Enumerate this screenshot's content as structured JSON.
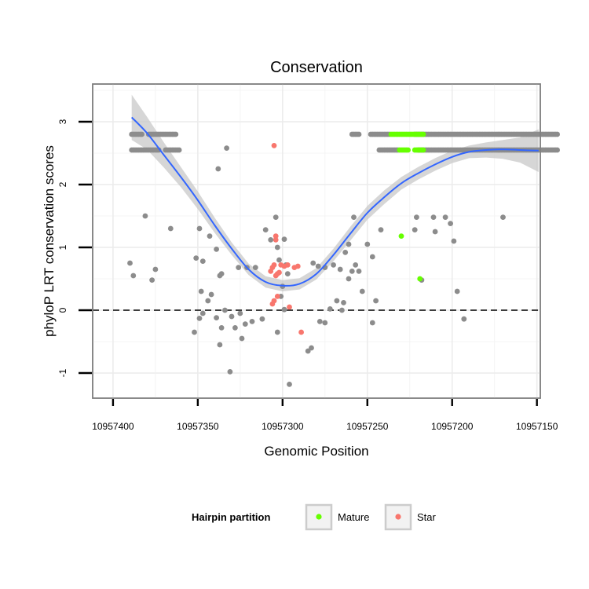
{
  "chart_data": {
    "type": "scatter",
    "title": "Conservation",
    "xlabel": "Genomic Position",
    "ylabel": "phyloP LRT conservation scores",
    "x_reversed": true,
    "xlim": [
      10957412,
      10957148
    ],
    "ylim": [
      -1.4,
      3.6
    ],
    "x_ticks": [
      10957400,
      10957350,
      10957300,
      10957250,
      10957200,
      10957150
    ],
    "x_tick_labels": [
      "10957400",
      "10957350",
      "10957300",
      "10957250",
      "10957200",
      "10957150"
    ],
    "y_ticks": [
      -1,
      0,
      1,
      2,
      3
    ],
    "y_tick_labels": [
      "-1",
      "0",
      "1",
      "2",
      "3"
    ],
    "reference_line": {
      "y": 0,
      "style": "dashed"
    },
    "legend": {
      "title": "Hairpin partition",
      "position": "bottom",
      "entries": [
        {
          "label": "Mature",
          "color": "#66ff00"
        },
        {
          "label": "Star",
          "color": "#f8766d"
        }
      ]
    },
    "colors": {
      "Other": "#8c8c8c",
      "Mature": "#66ff00",
      "Star": "#f8766d",
      "smooth": "#3366ff",
      "ribbon": "#c8c8c8"
    },
    "band_high": {
      "y": 2.8,
      "ranges": [
        [
          10957389,
          10957383
        ],
        [
          10957379,
          10957363
        ],
        [
          10957259,
          10957255
        ],
        [
          10957248,
          10957237
        ],
        [
          10957222,
          10957138
        ]
      ]
    },
    "band_low": {
      "y": 2.55,
      "ranges": [
        [
          10957389,
          10957373
        ],
        [
          10957369,
          10957361
        ],
        [
          10957243,
          10957232
        ],
        [
          10957220,
          10957138
        ]
      ]
    },
    "mature_high": {
      "y": 2.8,
      "ranges": [
        [
          10957236,
          10957217
        ]
      ]
    },
    "mature_low": {
      "y": 2.55,
      "ranges": [
        [
          10957231,
          10957226
        ],
        [
          10957222,
          10957217
        ]
      ]
    },
    "other_points": [
      [
        10957338,
        2.25
      ],
      [
        10957333,
        2.58
      ],
      [
        10957381,
        1.5
      ],
      [
        10957366,
        1.3
      ],
      [
        10957349,
        1.3
      ],
      [
        10957343,
        1.18
      ],
      [
        10957339,
        0.97
      ],
      [
        10957351,
        0.83
      ],
      [
        10957347,
        0.78
      ],
      [
        10957336,
        0.58
      ],
      [
        10957337,
        0.55
      ],
      [
        10957326,
        0.68
      ],
      [
        10957321,
        0.68
      ],
      [
        10957316,
        0.68
      ],
      [
        10957390,
        0.75
      ],
      [
        10957388,
        0.55
      ],
      [
        10957375,
        0.65
      ],
      [
        10957377,
        0.48
      ],
      [
        10957310,
        1.28
      ],
      [
        10957307,
        1.12
      ],
      [
        10957304,
        1.48
      ],
      [
        10957303,
        1.0
      ],
      [
        10957302,
        0.8
      ],
      [
        10957299,
        1.13
      ],
      [
        10957298,
        0.72
      ],
      [
        10957300,
        0.38
      ],
      [
        10957297,
        0.58
      ],
      [
        10957301,
        0.22
      ],
      [
        10957299,
        0.01
      ],
      [
        10957348,
        0.3
      ],
      [
        10957344,
        0.15
      ],
      [
        10957342,
        0.25
      ],
      [
        10957334,
        0.0
      ],
      [
        10957330,
        -0.1
      ],
      [
        10957325,
        -0.05
      ],
      [
        10957322,
        -0.22
      ],
      [
        10957318,
        -0.18
      ],
      [
        10957312,
        -0.14
      ],
      [
        10957347,
        -0.05
      ],
      [
        10957349,
        -0.13
      ],
      [
        10957352,
        -0.35
      ],
      [
        10957339,
        -0.12
      ],
      [
        10957336,
        -0.28
      ],
      [
        10957328,
        -0.28
      ],
      [
        10957324,
        -0.45
      ],
      [
        10957337,
        -0.55
      ],
      [
        10957331,
        -0.98
      ],
      [
        10957303,
        -0.35
      ],
      [
        10957296,
        -1.18
      ],
      [
        10957282,
        0.75
      ],
      [
        10957279,
        0.7
      ],
      [
        10957275,
        0.68
      ],
      [
        10957270,
        0.72
      ],
      [
        10957266,
        0.65
      ],
      [
        10957263,
        0.92
      ],
      [
        10957258,
        1.48
      ],
      [
        10957261,
        1.05
      ],
      [
        10957257,
        0.72
      ],
      [
        10957255,
        0.62
      ],
      [
        10957253,
        0.3
      ],
      [
        10957250,
        1.05
      ],
      [
        10957247,
        0.85
      ],
      [
        10957242,
        1.28
      ],
      [
        10957245,
        0.15
      ],
      [
        10957247,
        -0.2
      ],
      [
        10957259,
        0.62
      ],
      [
        10957261,
        0.5
      ],
      [
        10957264,
        0.12
      ],
      [
        10957265,
        0.0
      ],
      [
        10957268,
        0.15
      ],
      [
        10957272,
        0.02
      ],
      [
        10957275,
        -0.2
      ],
      [
        10957278,
        -0.18
      ],
      [
        10957283,
        -0.6
      ],
      [
        10957285,
        -0.65
      ],
      [
        10957221,
        1.48
      ],
      [
        10957222,
        1.28
      ],
      [
        10957218,
        0.48
      ],
      [
        10957211,
        1.48
      ],
      [
        10957210,
        1.25
      ],
      [
        10957204,
        1.48
      ],
      [
        10957201,
        1.38
      ],
      [
        10957199,
        1.1
      ],
      [
        10957197,
        0.3
      ],
      [
        10957193,
        -0.14
      ],
      [
        10957170,
        1.48
      ]
    ],
    "mature_points": [
      [
        10957230,
        1.18
      ],
      [
        10957219,
        0.5
      ]
    ],
    "star_points": [
      [
        10957305,
        2.62
      ],
      [
        10957304,
        1.12
      ],
      [
        10957304,
        1.18
      ],
      [
        10957305,
        0.72
      ],
      [
        10957306,
        0.68
      ],
      [
        10957307,
        0.62
      ],
      [
        10957304,
        0.55
      ],
      [
        10957303,
        0.58
      ],
      [
        10957302,
        0.6
      ],
      [
        10957301,
        0.72
      ],
      [
        10957299,
        0.7
      ],
      [
        10957303,
        0.22
      ],
      [
        10957305,
        0.15
      ],
      [
        10957306,
        0.1
      ],
      [
        10957296,
        0.05
      ],
      [
        10957293,
        0.68
      ],
      [
        10957297,
        0.72
      ],
      [
        10957291,
        0.7
      ],
      [
        10957289,
        -0.35
      ]
    ],
    "smooth_curve": [
      [
        10957389,
        3.07
      ],
      [
        10957380,
        2.82
      ],
      [
        10957370,
        2.47
      ],
      [
        10957360,
        2.12
      ],
      [
        10957350,
        1.75
      ],
      [
        10957340,
        1.35
      ],
      [
        10957330,
        0.98
      ],
      [
        10957320,
        0.65
      ],
      [
        10957310,
        0.45
      ],
      [
        10957300,
        0.39
      ],
      [
        10957290,
        0.42
      ],
      [
        10957280,
        0.58
      ],
      [
        10957270,
        0.88
      ],
      [
        10957260,
        1.22
      ],
      [
        10957250,
        1.55
      ],
      [
        10957240,
        1.8
      ],
      [
        10957230,
        2.02
      ],
      [
        10957220,
        2.18
      ],
      [
        10957210,
        2.32
      ],
      [
        10957200,
        2.44
      ],
      [
        10957190,
        2.52
      ],
      [
        10957180,
        2.55
      ],
      [
        10957170,
        2.56
      ],
      [
        10957160,
        2.55
      ],
      [
        10957149,
        2.54
      ]
    ],
    "ribbon_halfwidth": [
      0.36,
      0.26,
      0.2,
      0.16,
      0.14,
      0.12,
      0.1,
      0.09,
      0.09,
      0.09,
      0.09,
      0.09,
      0.1,
      0.11,
      0.11,
      0.11,
      0.1,
      0.1,
      0.1,
      0.1,
      0.1,
      0.12,
      0.15,
      0.2,
      0.34
    ]
  }
}
